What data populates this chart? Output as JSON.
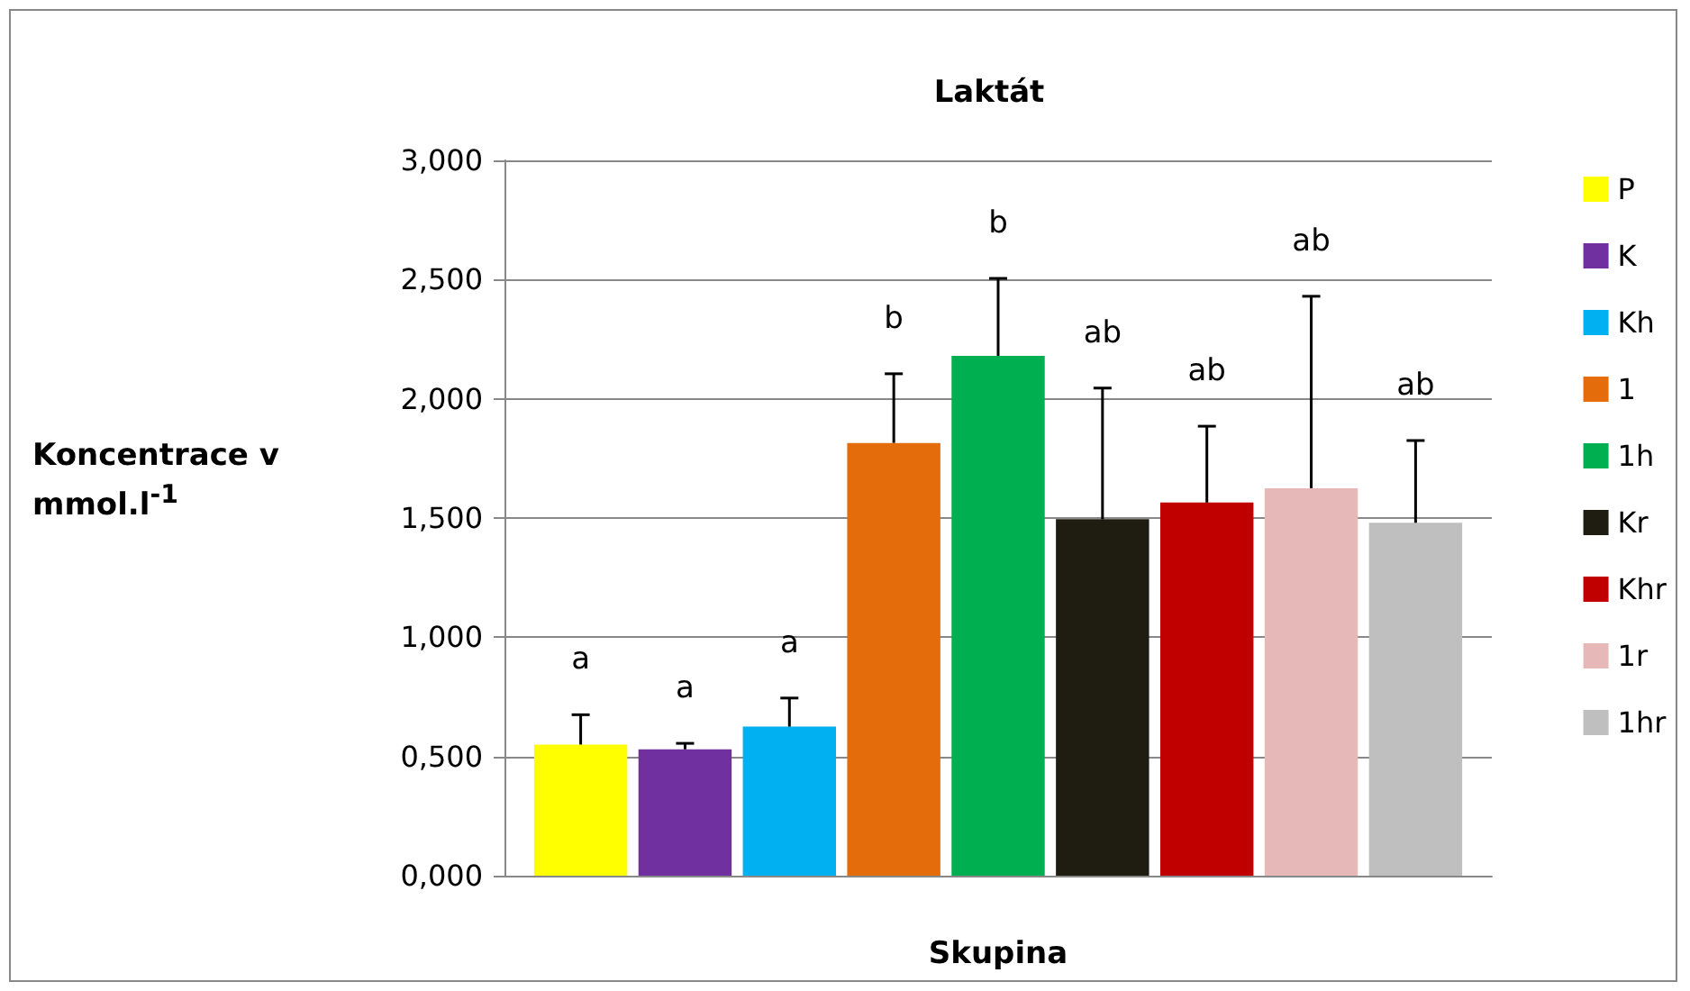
{
  "chart_data": {
    "type": "bar",
    "title": "Laktát",
    "xlabel": "Skupina",
    "ylabel": "Koncentrace v mmol.l$^{-1}$",
    "categories": [
      null
    ],
    "series": [
      {
        "name": "P",
        "color": "#ffff00",
        "values": [
          0.55
        ],
        "errors": [
          0.125
        ]
      },
      {
        "name": "K",
        "color": "#7030a0",
        "values": [
          0.53
        ],
        "errors": [
          0.025
        ]
      },
      {
        "name": "Kh",
        "color": "#00b0f0",
        "values": [
          0.625
        ],
        "errors": [
          0.12
        ]
      },
      {
        "name": "1",
        "color": "#e46c0a",
        "values": [
          1.815
        ],
        "errors": [
          0.29
        ]
      },
      {
        "name": "1h",
        "color": "#00b050",
        "values": [
          2.18
        ],
        "errors": [
          0.325
        ]
      },
      {
        "name": "Kr",
        "color": "#1f1d12",
        "values": [
          1.495
        ],
        "errors": [
          0.55
        ]
      },
      {
        "name": "Khr",
        "color": "#c00000",
        "values": [
          1.565
        ],
        "errors": [
          0.32
        ]
      },
      {
        "name": "1r",
        "color": "#e6b8b7",
        "values": [
          1.625
        ],
        "errors": [
          0.805
        ]
      },
      {
        "name": "1hr",
        "color": "#bfbfbf",
        "values": [
          1.48
        ],
        "errors": [
          0.345
        ]
      }
    ],
    "annotations": [
      "a",
      "a",
      "a",
      "b",
      "b",
      "ab",
      "ab",
      "ab",
      "ab"
    ],
    "ylim": [
      0,
      3
    ],
    "yticks": [
      {
        "value": 0,
        "label": "0,000"
      },
      {
        "value": 0.5,
        "label": "0,500"
      },
      {
        "value": 1,
        "label": "1,000"
      },
      {
        "value": 1.5,
        "label": "1,500"
      },
      {
        "value": 2,
        "label": "2,000"
      },
      {
        "value": 2.5,
        "label": "2,500"
      },
      {
        "value": 3,
        "label": "3,000"
      }
    ],
    "grid": "y",
    "legend": "right"
  }
}
